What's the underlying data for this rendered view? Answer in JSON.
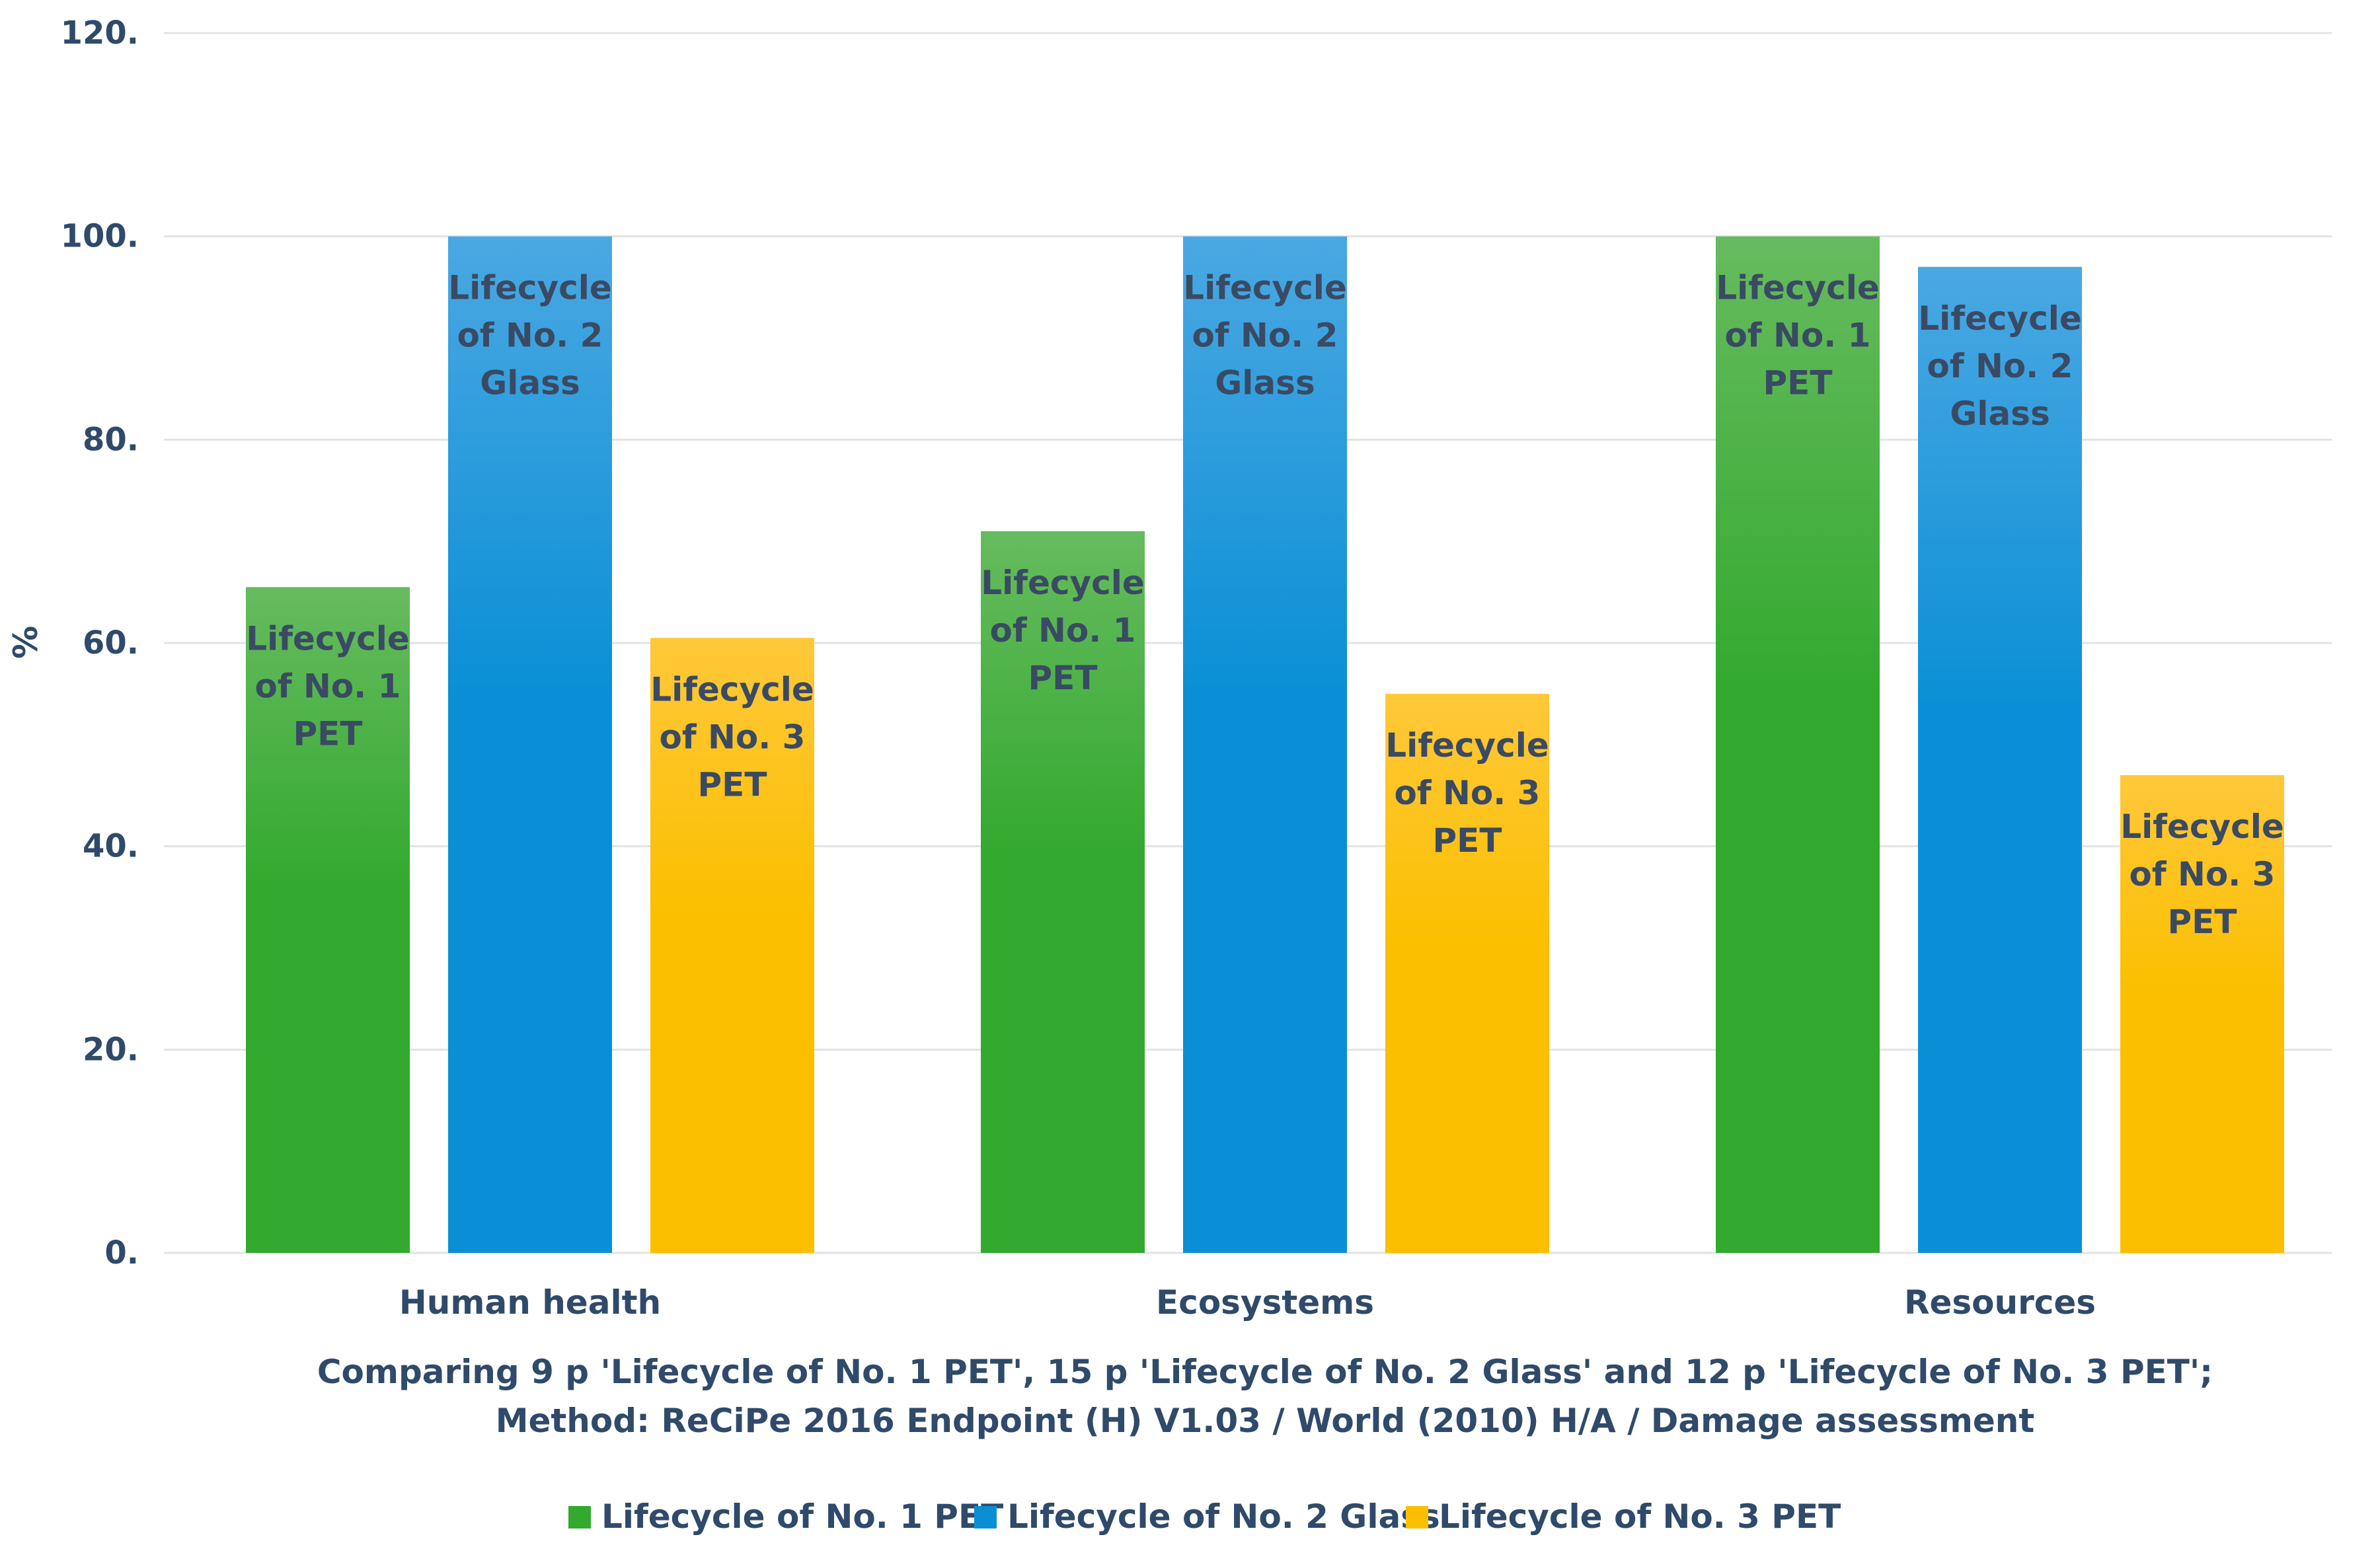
{
  "chart_data": {
    "type": "bar",
    "categories": [
      "Human health",
      "Ecosystems",
      "Resources"
    ],
    "series": [
      {
        "name": "Lifecycle of No. 1 PET",
        "label_lines": [
          "Lifecycle",
          "of No. 1",
          "PET"
        ],
        "color": "#33a92f",
        "color_light": "#66bb5e",
        "values": [
          65.5,
          71,
          100
        ]
      },
      {
        "name": "Lifecycle of No. 2 Glass",
        "label_lines": [
          "Lifecycle",
          "of No. 2",
          "Glass"
        ],
        "color": "#0a8fd6",
        "color_light": "#4aa8e2",
        "values": [
          100,
          100,
          97
        ]
      },
      {
        "name": "Lifecycle of No. 3 PET",
        "label_lines": [
          "Lifecycle",
          "of No. 3",
          "PET"
        ],
        "color": "#fbbf00",
        "color_light": "#ffc83a",
        "values": [
          60.5,
          55,
          47
        ]
      }
    ],
    "ylabel": "%",
    "ylim": [
      0,
      120
    ],
    "yticks": [
      0,
      20,
      40,
      60,
      80,
      100,
      120
    ],
    "ytick_labels": [
      "0.",
      "20.",
      "40.",
      "60.",
      "80.",
      "100.",
      "120."
    ],
    "caption_lines": [
      "Comparing 9 p 'Lifecycle of No. 1 PET', 15 p 'Lifecycle of No. 2 Glass' and 12 p 'Lifecycle of No. 3 PET';",
      "Method: ReCiPe 2016 Endpoint (H) V1.03 / World (2010) H/A / Damage assessment"
    ],
    "legend_position": "bottom",
    "grid": true
  }
}
